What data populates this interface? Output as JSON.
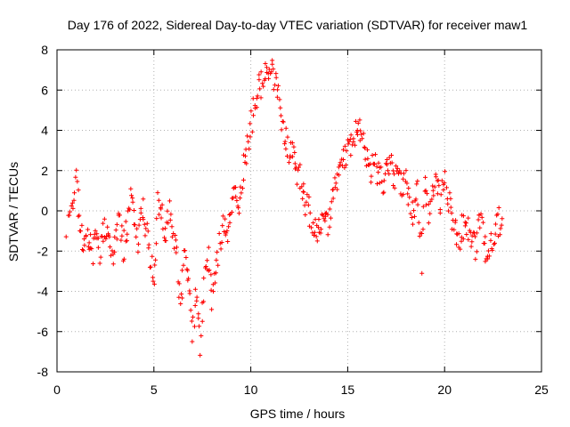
{
  "chart_data": {
    "type": "scatter",
    "title": "Day 176 of 2022, Sidereal Day-to-day VTEC variation (SDTVAR) for receiver maw1",
    "xlabel": "GPS time / hours",
    "ylabel": "SDTVAR / TECUs",
    "xlim": [
      0,
      25
    ],
    "ylim": [
      -8,
      8
    ],
    "xticks": [
      0,
      5,
      10,
      15,
      20,
      25
    ],
    "yticks": [
      -8,
      -6,
      -4,
      -2,
      0,
      2,
      4,
      6,
      8
    ],
    "grid": true,
    "marker": "+",
    "series": [
      {
        "name": "SDTVAR",
        "color": "#ff0000",
        "approx_trace": [
          [
            0.5,
            -0.8
          ],
          [
            0.8,
            0.5
          ],
          [
            1.0,
            1.5
          ],
          [
            1.2,
            -0.5
          ],
          [
            1.4,
            -2.0
          ],
          [
            1.6,
            -1.2
          ],
          [
            1.8,
            -2.3
          ],
          [
            2.0,
            -1.5
          ],
          [
            2.2,
            -2.0
          ],
          [
            2.4,
            -1.2
          ],
          [
            2.6,
            -0.6
          ],
          [
            2.8,
            -2.5
          ],
          [
            3.0,
            -1.8
          ],
          [
            3.2,
            -0.5
          ],
          [
            3.4,
            -2.0
          ],
          [
            3.6,
            -1.0
          ],
          [
            3.8,
            0.6
          ],
          [
            4.0,
            -0.5
          ],
          [
            4.2,
            -1.8
          ],
          [
            4.4,
            0.3
          ],
          [
            4.6,
            -1.0
          ],
          [
            4.8,
            -2.5
          ],
          [
            5.0,
            -3.5
          ],
          [
            5.2,
            0.7
          ],
          [
            5.4,
            -0.2
          ],
          [
            5.6,
            -1.0
          ],
          [
            5.8,
            0.0
          ],
          [
            6.0,
            -1.5
          ],
          [
            6.2,
            -2.5
          ],
          [
            6.4,
            -4.5
          ],
          [
            6.6,
            -2.0
          ],
          [
            6.8,
            -3.5
          ],
          [
            7.0,
            -5.8
          ],
          [
            7.2,
            -4.0
          ],
          [
            7.4,
            -6.5
          ],
          [
            7.6,
            -3.2
          ],
          [
            7.8,
            -2.0
          ],
          [
            8.0,
            -4.5
          ],
          [
            8.2,
            -3.0
          ],
          [
            8.4,
            -1.5
          ],
          [
            8.6,
            -0.8
          ],
          [
            8.8,
            -1.2
          ],
          [
            9.0,
            0.5
          ],
          [
            9.2,
            1.0
          ],
          [
            9.4,
            0.5
          ],
          [
            9.6,
            2.0
          ],
          [
            9.8,
            3.0
          ],
          [
            10.0,
            4.0
          ],
          [
            10.2,
            5.5
          ],
          [
            10.4,
            6.0
          ],
          [
            10.6,
            6.5
          ],
          [
            10.8,
            7.5
          ],
          [
            11.0,
            7.0
          ],
          [
            11.2,
            6.5
          ],
          [
            11.4,
            6.0
          ],
          [
            11.6,
            4.5
          ],
          [
            11.8,
            3.5
          ],
          [
            12.0,
            3.0
          ],
          [
            12.2,
            2.5
          ],
          [
            12.4,
            1.8
          ],
          [
            12.6,
            1.5
          ],
          [
            12.8,
            0.5
          ],
          [
            13.0,
            0.0
          ],
          [
            13.2,
            -0.5
          ],
          [
            13.4,
            -0.8
          ],
          [
            13.6,
            -0.9
          ],
          [
            13.8,
            -0.8
          ],
          [
            14.0,
            -0.5
          ],
          [
            14.2,
            0.5
          ],
          [
            14.4,
            1.5
          ],
          [
            14.6,
            2.2
          ],
          [
            14.8,
            2.5
          ],
          [
            15.0,
            3.0
          ],
          [
            15.2,
            3.5
          ],
          [
            15.4,
            3.8
          ],
          [
            15.6,
            4.2
          ],
          [
            15.8,
            3.2
          ],
          [
            16.0,
            2.5
          ],
          [
            16.2,
            2.0
          ],
          [
            16.4,
            2.2
          ],
          [
            16.6,
            1.8
          ],
          [
            16.8,
            1.5
          ],
          [
            17.0,
            2.0
          ],
          [
            17.2,
            2.5
          ],
          [
            17.4,
            1.8
          ],
          [
            17.6,
            1.5
          ],
          [
            17.8,
            1.2
          ],
          [
            18.0,
            1.5
          ],
          [
            18.2,
            0.5
          ],
          [
            18.4,
            -0.5
          ],
          [
            18.6,
            1.0
          ],
          [
            18.8,
            -2.5
          ],
          [
            19.0,
            1.5
          ],
          [
            19.2,
            -0.5
          ],
          [
            19.4,
            0.8
          ],
          [
            19.6,
            1.5
          ],
          [
            19.8,
            0.2
          ],
          [
            20.0,
            2.0
          ],
          [
            20.2,
            0.5
          ],
          [
            20.4,
            -0.5
          ],
          [
            20.6,
            -1.0
          ],
          [
            20.8,
            -1.5
          ],
          [
            21.0,
            -0.5
          ],
          [
            21.2,
            -0.8
          ],
          [
            21.4,
            -1.5
          ],
          [
            21.6,
            -2.0
          ],
          [
            21.8,
            -0.5
          ],
          [
            22.0,
            -1.0
          ],
          [
            22.2,
            -2.5
          ],
          [
            22.4,
            -1.5
          ],
          [
            22.6,
            -1.0
          ],
          [
            22.8,
            -0.5
          ],
          [
            23.0,
            -1.0
          ]
        ]
      }
    ]
  }
}
